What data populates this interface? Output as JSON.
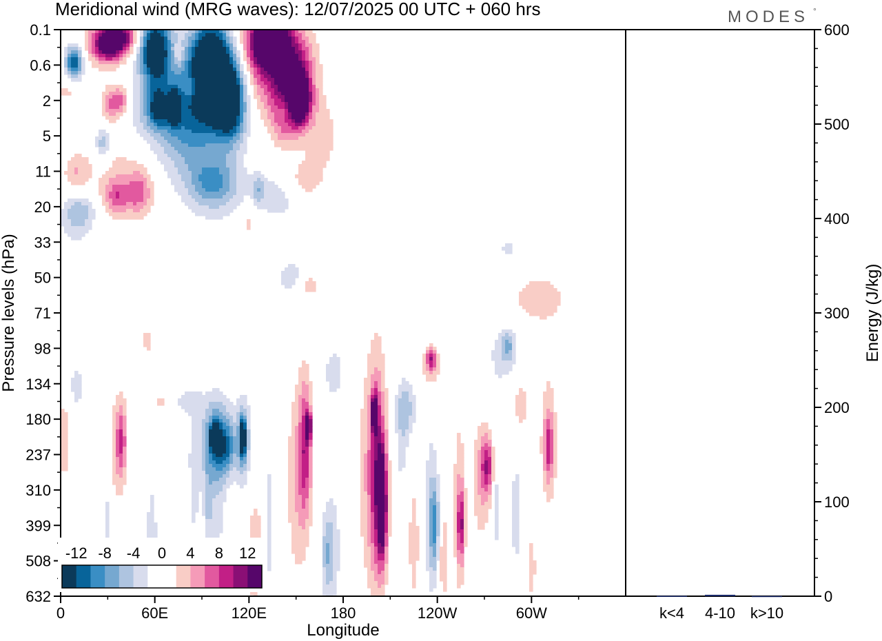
{
  "chart_data": {
    "type": "heatmap",
    "title": "Meridional wind (MRG waves):  12/07/2025  00 UTC  + 060 hrs",
    "brand": "MODES",
    "brand_mark": "°",
    "xlabel": "Longitude",
    "ylabel": "Pressure levels (hPa)",
    "x_ticks": [
      "0",
      "60E",
      "120E",
      "180",
      "120W",
      "60W"
    ],
    "y_ticks": [
      "0.1",
      "0.6",
      "2",
      "5",
      "11",
      "20",
      "33",
      "50",
      "71",
      "98",
      "134",
      "180",
      "237",
      "310",
      "399",
      "508",
      "632"
    ],
    "colorbar": {
      "labels": [
        "-12",
        "-8",
        "-4",
        "0",
        "4",
        "8",
        "12"
      ],
      "colors": [
        "#0b3a5a",
        "#08649a",
        "#3a8ec4",
        "#76a8d0",
        "#aec4e0",
        "#d8dced",
        "#ffffff",
        "#ffffff",
        "#f9cdc6",
        "#f59bb8",
        "#e2599f",
        "#c21f86",
        "#8a0f75",
        "#56066a"
      ]
    },
    "energy_panel": {
      "ylabel": "Energy (J/kg)",
      "ylim": [
        0,
        600
      ],
      "y_ticks": [
        "0",
        "100",
        "200",
        "300",
        "400",
        "500",
        "600"
      ],
      "categories": [
        "k<4",
        "4-10",
        "k>10"
      ],
      "values": [
        0.4,
        1.5,
        0.2
      ],
      "color": "#1a2a6a"
    },
    "features": [
      {
        "lon": 36,
        "lev": 0.2,
        "rx": 12,
        "ry": 0.45,
        "v": 14
      },
      {
        "lon": 30,
        "lev": 0.5,
        "rx": 10,
        "ry": 0.5,
        "v": 10
      },
      {
        "lon": 8,
        "lev": 0.9,
        "rx": 5,
        "ry": 0.4,
        "v": -9
      },
      {
        "lon": 10,
        "lev": 1.0,
        "rx": 7,
        "ry": 0.9,
        "v": -6
      },
      {
        "lon": 6,
        "lev": 1.7,
        "rx": 8,
        "ry": 0.4,
        "v": 3.5
      },
      {
        "lon": 32,
        "lev": 2.1,
        "rx": 6,
        "ry": 0.5,
        "v": 6
      },
      {
        "lon": 39,
        "lev": 2.0,
        "rx": 5,
        "ry": 0.4,
        "v": 6
      },
      {
        "lon": 27,
        "lev": 3.2,
        "rx": 5,
        "ry": 0.5,
        "v": -6
      },
      {
        "lon": 36,
        "lev": 4.7,
        "rx": 8,
        "ry": 0.5,
        "v": 6
      },
      {
        "lon": 50,
        "lev": 4.6,
        "rx": 8,
        "ry": 0.6,
        "v": 6
      },
      {
        "lon": 10,
        "lev": 4.0,
        "rx": 8,
        "ry": 0.5,
        "v": 3.5
      },
      {
        "lon": 40,
        "lev": 4.0,
        "rx": 25,
        "ry": 1.3,
        "v": 2.5
      },
      {
        "lon": 12,
        "lev": 5.1,
        "rx": 10,
        "ry": 0.45,
        "v": -5
      },
      {
        "lon": 10,
        "lev": 5.6,
        "rx": 12,
        "ry": 0.6,
        "v": -2.5
      },
      {
        "lon": 60,
        "lev": 0.6,
        "rx": 10,
        "ry": 1.0,
        "v": -16
      },
      {
        "lon": 72,
        "lev": 2.2,
        "rx": 4,
        "ry": 0.5,
        "v": -10
      },
      {
        "lon": 62,
        "lev": 2.2,
        "rx": 6,
        "ry": 0.5,
        "v": -9
      },
      {
        "lon": 57,
        "lev": 2.4,
        "rx": 18,
        "ry": 0.8,
        "v": -3.5
      },
      {
        "lon": 86,
        "lev": 1.8,
        "rx": 20,
        "ry": 1.6,
        "v": -9
      },
      {
        "lon": 96,
        "lev": 1.0,
        "rx": 11,
        "ry": 1.2,
        "v": -18
      },
      {
        "lon": 108,
        "lev": 2.0,
        "rx": 10,
        "ry": 1.1,
        "v": -16
      },
      {
        "lon": 80,
        "lev": 3.2,
        "rx": 25,
        "ry": 1.3,
        "v": -4
      },
      {
        "lon": 98,
        "lev": 4.3,
        "rx": 14,
        "ry": 0.6,
        "v": -5
      },
      {
        "lon": 97,
        "lev": 4.6,
        "rx": 18,
        "ry": 0.9,
        "v": -3
      },
      {
        "lon": 75,
        "lev": 0.7,
        "rx": 4,
        "ry": 0.35,
        "v": 4
      },
      {
        "lon": 83,
        "lev": 1.6,
        "rx": 4,
        "ry": 0.35,
        "v": 4
      },
      {
        "lon": 130,
        "lev": 0.6,
        "rx": 14,
        "ry": 1.5,
        "v": 9
      },
      {
        "lon": 134,
        "lev": 0.35,
        "rx": 12,
        "ry": 0.7,
        "v": 14
      },
      {
        "lon": 150,
        "lev": 1.4,
        "rx": 12,
        "ry": 1.3,
        "v": 12
      },
      {
        "lon": 152,
        "lev": 2.0,
        "rx": 6,
        "ry": 0.6,
        "v": 16
      },
      {
        "lon": 142,
        "lev": 2.2,
        "rx": 8,
        "ry": 0.9,
        "v": 8
      },
      {
        "lon": 143,
        "lev": 2.2,
        "rx": 6,
        "ry": 0.5,
        "v": -7
      },
      {
        "lon": 167,
        "lev": 3.0,
        "rx": 10,
        "ry": 1.0,
        "v": 3
      },
      {
        "lon": 140,
        "lev": 4.7,
        "rx": 20,
        "ry": 0.8,
        "v": -3
      },
      {
        "lon": 126,
        "lev": 4.5,
        "rx": 4,
        "ry": 0.4,
        "v": -4
      },
      {
        "lon": 155,
        "lev": 4.3,
        "rx": 12,
        "ry": 0.6,
        "v": 4
      },
      {
        "lon": 120,
        "lev": 5.4,
        "rx": 5,
        "ry": 0.5,
        "v": 3
      },
      {
        "lon": 147,
        "lev": 7.0,
        "rx": 9,
        "ry": 0.5,
        "v": -3.5
      },
      {
        "lon": 158,
        "lev": 7.2,
        "rx": 8,
        "ry": 0.4,
        "v": 3
      },
      {
        "lon": 80,
        "lev": 10.5,
        "rx": 10,
        "ry": 0.4,
        "v": -2.5
      },
      {
        "lon": 64,
        "lev": 10.5,
        "rx": 4,
        "ry": 0.4,
        "v": 2.5
      },
      {
        "lon": 85,
        "lev": 12.9,
        "rx": 4,
        "ry": 2.2,
        "v": -2.5
      },
      {
        "lon": 97,
        "lev": 11.6,
        "rx": 11,
        "ry": 1.3,
        "v": -4
      },
      {
        "lon": 100,
        "lev": 11.6,
        "rx": 8,
        "ry": 1.0,
        "v": -6
      },
      {
        "lon": 98,
        "lev": 11.5,
        "rx": 3,
        "ry": 0.35,
        "v": -10
      },
      {
        "lon": 106,
        "lev": 11.8,
        "rx": 5,
        "ry": 0.7,
        "v": -6
      },
      {
        "lon": 100,
        "lev": 13.5,
        "rx": 5,
        "ry": 2.3,
        "v": -2.5
      },
      {
        "lon": 94,
        "lev": 13.4,
        "rx": 3,
        "ry": 1.2,
        "v": -4
      },
      {
        "lon": 116,
        "lev": 11.6,
        "rx": 6,
        "ry": 1.3,
        "v": -4
      },
      {
        "lon": 116,
        "lev": 11.6,
        "rx": 3,
        "ry": 0.8,
        "v": -7
      },
      {
        "lon": 116,
        "lev": 11.5,
        "rx": 1.5,
        "ry": 0.45,
        "v": -12
      },
      {
        "lon": 151,
        "lev": 12.7,
        "rx": 7,
        "ry": 2.8,
        "v": 4
      },
      {
        "lon": 156,
        "lev": 11.8,
        "rx": 4,
        "ry": 1.9,
        "v": 8
      },
      {
        "lon": 158,
        "lev": 11.2,
        "rx": 1.5,
        "ry": 0.4,
        "v": 12
      },
      {
        "lon": 173,
        "lev": 14.7,
        "rx": 6,
        "ry": 1.8,
        "v": -3
      },
      {
        "lon": 174,
        "lev": 9.7,
        "rx": 6,
        "ry": 0.7,
        "v": -3.5
      },
      {
        "lon": 198,
        "lev": 12.5,
        "rx": 9,
        "ry": 3.3,
        "v": 4
      },
      {
        "lon": 202,
        "lev": 12.5,
        "rx": 5,
        "ry": 2.8,
        "v": 8
      },
      {
        "lon": 205,
        "lev": 13.5,
        "rx": 3,
        "ry": 1.5,
        "v": 13
      },
      {
        "lon": 200,
        "lev": 10.8,
        "rx": 2,
        "ry": 0.5,
        "v": 12
      },
      {
        "lon": 220,
        "lev": 10.7,
        "rx": 6,
        "ry": 0.8,
        "v": -5
      },
      {
        "lon": 217,
        "lev": 11.8,
        "rx": 4,
        "ry": 1.5,
        "v": -2.5
      },
      {
        "lon": 236,
        "lev": 13.6,
        "rx": 5,
        "ry": 2.8,
        "v": -3
      },
      {
        "lon": 238,
        "lev": 14.0,
        "rx": 3,
        "ry": 1.2,
        "v": -7
      },
      {
        "lon": 236,
        "lev": 9.5,
        "rx": 6,
        "ry": 0.6,
        "v": 4
      },
      {
        "lon": 236,
        "lev": 9.3,
        "rx": 3,
        "ry": 0.3,
        "v": 7
      },
      {
        "lon": 254,
        "lev": 13.5,
        "rx": 4,
        "ry": 2.5,
        "v": 4
      },
      {
        "lon": 255,
        "lev": 14.0,
        "rx": 2,
        "ry": 1.0,
        "v": 8
      },
      {
        "lon": 268,
        "lev": 12.7,
        "rx": 6,
        "ry": 1.7,
        "v": 4
      },
      {
        "lon": 272,
        "lev": 12.3,
        "rx": 4,
        "ry": 0.8,
        "v": 8
      },
      {
        "lon": 278,
        "lev": 13.0,
        "rx": 3,
        "ry": 2.4,
        "v": -3
      },
      {
        "lon": 282,
        "lev": 9.2,
        "rx": 10,
        "ry": 0.8,
        "v": -3
      },
      {
        "lon": 285,
        "lev": 8.9,
        "rx": 4,
        "ry": 0.4,
        "v": -5
      },
      {
        "lon": 293,
        "lev": 10.6,
        "rx": 5,
        "ry": 0.7,
        "v": 3.5
      },
      {
        "lon": 290,
        "lev": 13.7,
        "rx": 3,
        "ry": 2.0,
        "v": -3
      },
      {
        "lon": 311,
        "lev": 11.6,
        "rx": 5,
        "ry": 2.0,
        "v": 4
      },
      {
        "lon": 311,
        "lev": 11.8,
        "rx": 3,
        "ry": 0.8,
        "v": 6
      },
      {
        "lon": 285,
        "lev": 6.2,
        "rx": 5,
        "ry": 0.3,
        "v": -3
      },
      {
        "lon": 305,
        "lev": 7.6,
        "rx": 20,
        "ry": 0.8,
        "v": 3
      },
      {
        "lon": 12,
        "lev": 0.5,
        "rx": 10,
        "ry": 1.2,
        "v": 3
      },
      {
        "lon": 2,
        "lev": 11.5,
        "rx": 4,
        "ry": 1.2,
        "v": 4
      },
      {
        "lon": 36,
        "lev": 11.8,
        "rx": 5,
        "ry": 1.5,
        "v": 4
      },
      {
        "lon": 39,
        "lev": 11.6,
        "rx": 3,
        "ry": 1.0,
        "v": 6
      },
      {
        "lon": 10,
        "lev": 10.1,
        "rx": 7,
        "ry": 0.9,
        "v": -2.5
      },
      {
        "lon": 58,
        "lev": 14.4,
        "rx": 4,
        "ry": 2.0,
        "v": -3
      },
      {
        "lon": 30,
        "lev": 14.1,
        "rx": 3,
        "ry": 1.5,
        "v": -3
      },
      {
        "lon": 132,
        "lev": 14.0,
        "rx": 3,
        "ry": 2.5,
        "v": -3
      },
      {
        "lon": 124,
        "lev": 14.8,
        "rx": 5,
        "ry": 1.6,
        "v": 4
      },
      {
        "lon": 170,
        "lev": 14.8,
        "rx": 4,
        "ry": 1.1,
        "v": -4
      },
      {
        "lon": 225,
        "lev": 14.5,
        "rx": 3,
        "ry": 1.5,
        "v": 4
      },
      {
        "lon": 244,
        "lev": 14.9,
        "rx": 3,
        "ry": 1.3,
        "v": 4
      },
      {
        "lon": 300,
        "lev": 15.2,
        "rx": 3,
        "ry": 1.1,
        "v": 3
      },
      {
        "lon": 55,
        "lev": 8.8,
        "rx": 3,
        "ry": 0.4,
        "v": 3
      }
    ]
  }
}
